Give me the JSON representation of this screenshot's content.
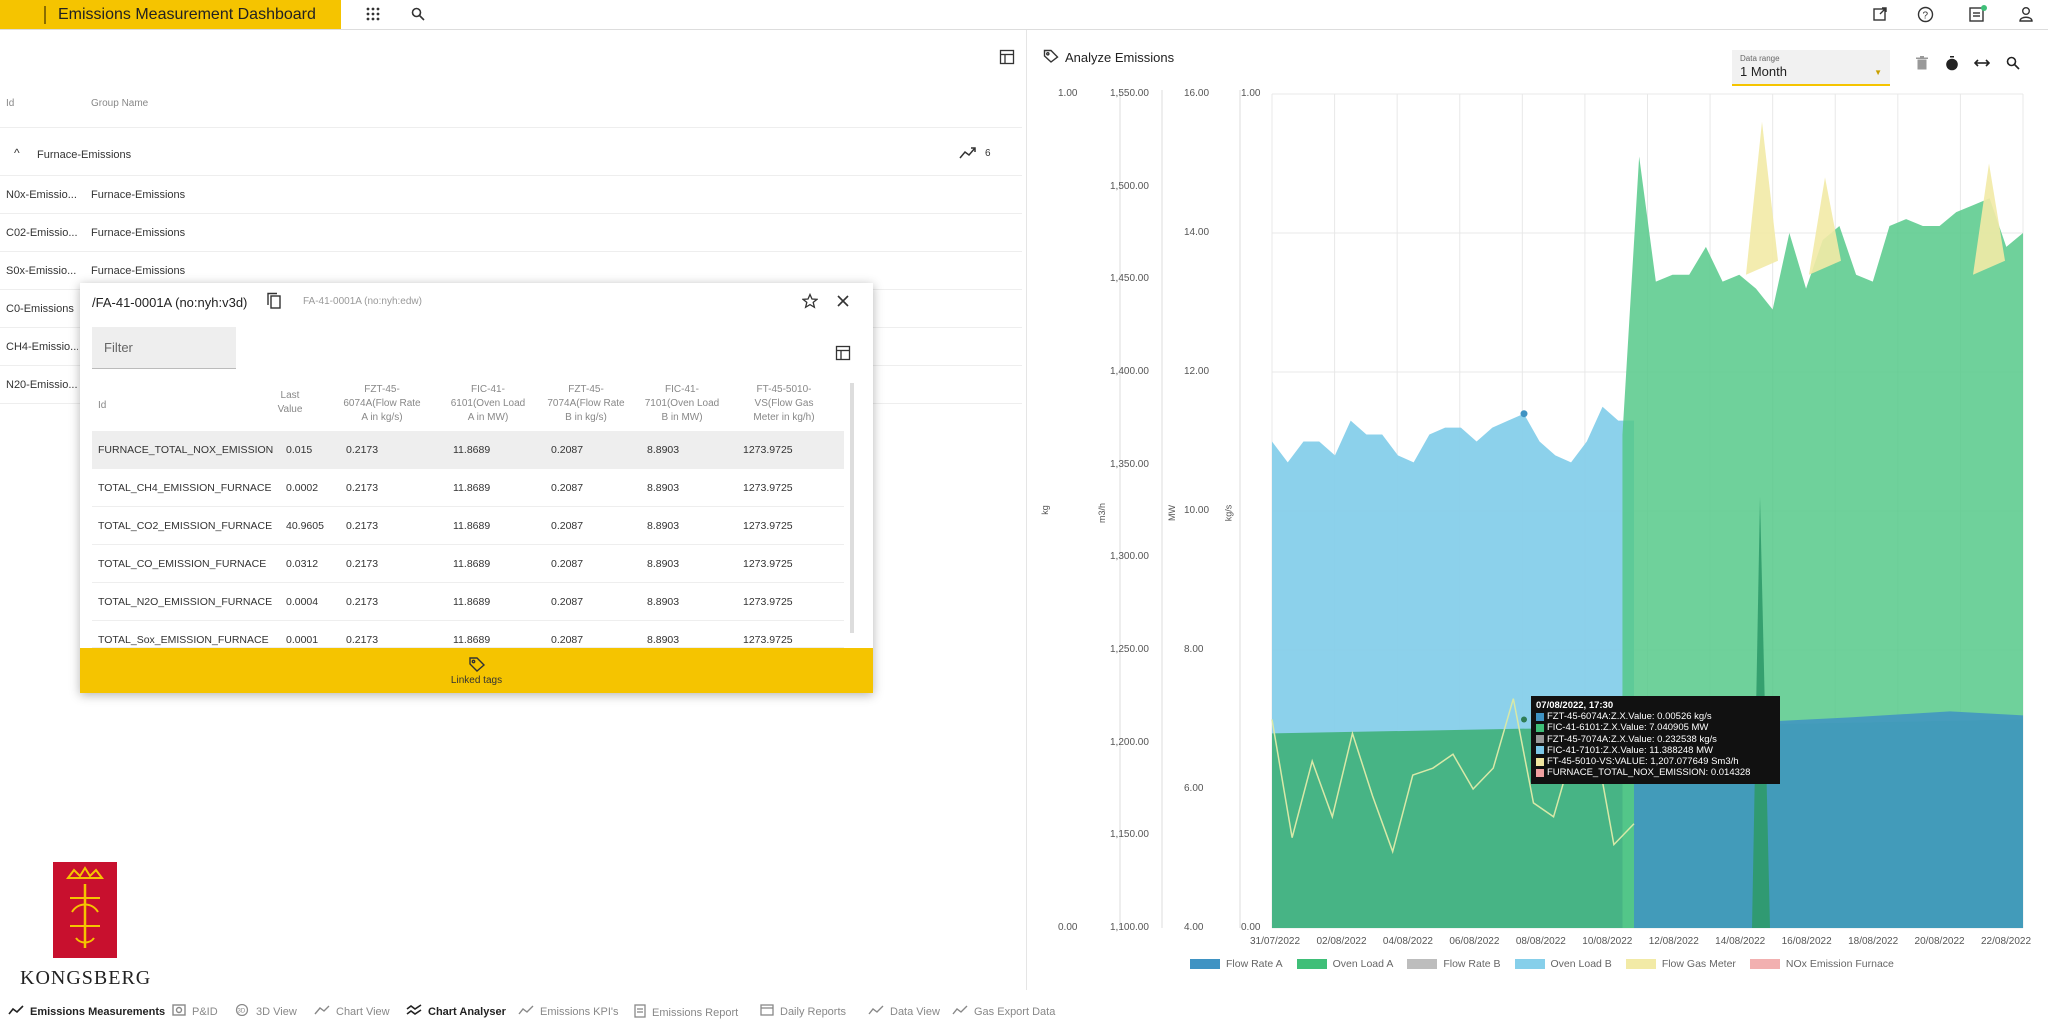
{
  "app": {
    "title": "Emissions Measurement Dashboard"
  },
  "top_icons": [
    "grid-icon",
    "search-icon",
    "external-link-icon",
    "help-icon",
    "notifications-icon",
    "user-icon"
  ],
  "left": {
    "columns": {
      "id": "Id",
      "group": "Group Name"
    },
    "group": {
      "name": "Furnace-Emissions",
      "count": "6"
    },
    "rows": [
      {
        "id": "N0x-Emissio...",
        "group": "Furnace-Emissions"
      },
      {
        "id": "C02-Emissio...",
        "group": "Furnace-Emissions"
      },
      {
        "id": "S0x-Emissio...",
        "group": "Furnace-Emissions"
      },
      {
        "id": "C0-Emissions",
        "group": ""
      },
      {
        "id": "CH4-Emissio...",
        "group": ""
      },
      {
        "id": "N20-Emissio...",
        "group": ""
      }
    ]
  },
  "popup": {
    "title": "/FA-41-0001A (no:nyh:v3d)",
    "subtitle": "FA-41-0001A (no:nyh:edw)",
    "filter_placeholder": "Filter",
    "headers": [
      "Id",
      "Last Value",
      "FZT-45-6074A(Flow Rate A in kg/s)",
      "FIC-41-6101(Oven Load A in MW)",
      "FZT-45-7074A(Flow Rate B in kg/s)",
      "FIC-41-7101(Oven Load B in MW)",
      "FT-45-5010-VS(Flow Gas Meter in kg/h)"
    ],
    "rows": [
      [
        "FURNACE_TOTAL_NOX_EMISSION",
        "0.015",
        "0.2173",
        "11.8689",
        "0.2087",
        "8.8903",
        "1273.9725"
      ],
      [
        "TOTAL_CH4_EMISSION_FURNACE",
        "0.0002",
        "0.2173",
        "11.8689",
        "0.2087",
        "8.8903",
        "1273.9725"
      ],
      [
        "TOTAL_CO2_EMISSION_FURNACE",
        "40.9605",
        "0.2173",
        "11.8689",
        "0.2087",
        "8.8903",
        "1273.9725"
      ],
      [
        "TOTAL_CO_EMISSION_FURNACE",
        "0.0312",
        "0.2173",
        "11.8689",
        "0.2087",
        "8.8903",
        "1273.9725"
      ],
      [
        "TOTAL_N2O_EMISSION_FURNACE",
        "0.0004",
        "0.2173",
        "11.8689",
        "0.2087",
        "8.8903",
        "1273.9725"
      ],
      [
        "TOTAL_Sox_EMISSION_FURNACE",
        "0.0001",
        "0.2173",
        "11.8689",
        "0.2087",
        "8.8903",
        "1273.9725"
      ]
    ],
    "linked_label": "Linked tags"
  },
  "chart": {
    "title": "Analyze Emissions",
    "date_range_label": "Data range",
    "date_range_value": "1 Month",
    "tooltip": {
      "title": "07/08/2022, 17:30",
      "lines": [
        {
          "text": "FZT-45-6074A:Z.X.Value: 0.00526 kg/s",
          "color": "#3f93c3"
        },
        {
          "text": "FIC-41-6101:Z.X.Value: 7.040905 MW",
          "color": "#3fbf78"
        },
        {
          "text": "FZT-45-7074A:Z.X.Value: 0.232538 kg/s",
          "color": "#9a9a9a"
        },
        {
          "text": "FIC-41-7101:Z.X.Value: 11.388248 MW",
          "color": "#7cc8e8"
        },
        {
          "text": "FT-45-5010-VS:VALUE: 1,207.077649 Sm3/h",
          "color": "#f0e6a0"
        },
        {
          "text": "FURNACE_TOTAL_NOX_EMISSION: 0.014328",
          "color": "#f0a0a0"
        }
      ]
    }
  },
  "chart_data": {
    "type": "area",
    "x_ticks": [
      "31/07/2022",
      "02/08/2022",
      "04/08/2022",
      "06/08/2022",
      "08/08/2022",
      "10/08/2022",
      "12/08/2022",
      "14/08/2022",
      "16/08/2022",
      "18/08/2022",
      "20/08/2022",
      "22/08/2022"
    ],
    "axes": [
      {
        "unit": "kg",
        "ticks": [
          "0.00",
          "1.00"
        ]
      },
      {
        "unit": "m3/h",
        "ticks": [
          "1,100.00",
          "1,150.00",
          "1,200.00",
          "1,250.00",
          "1,300.00",
          "1,350.00",
          "1,400.00",
          "1,450.00",
          "1,500.00",
          "1,550.00"
        ]
      },
      {
        "unit": "MW",
        "ticks": [
          "4.00",
          "6.00",
          "8.00",
          "10.00",
          "12.00",
          "14.00",
          "16.00"
        ]
      },
      {
        "unit": "kg/s",
        "ticks": [
          "0.00",
          "1.00"
        ]
      }
    ],
    "series": [
      {
        "name": "Flow Rate A",
        "color": "#3f93c3"
      },
      {
        "name": "Oven Load A",
        "color": "#3fbf78"
      },
      {
        "name": "Flow Rate B",
        "color": "#bdbdbd"
      },
      {
        "name": "Oven Load B",
        "color": "#86cfea"
      },
      {
        "name": "Flow Gas Meter",
        "color": "#f2eaa6"
      },
      {
        "name": "NOx Emission Furnace",
        "color": "#f2b0b0"
      }
    ],
    "oven_load_b": [
      11.0,
      10.7,
      11.0,
      11.0,
      10.8,
      11.3,
      11.1,
      11.1,
      10.8,
      10.7,
      11.1,
      11.2,
      11.2,
      11.0,
      11.2,
      11.3,
      11.4,
      11.0,
      10.8,
      10.7,
      11.0,
      11.5,
      11.3,
      11.3
    ],
    "oven_load_a": [
      null,
      null,
      null,
      null,
      null,
      null,
      null,
      null,
      null,
      null,
      null,
      null,
      null,
      null,
      null,
      null,
      null,
      null,
      null,
      null,
      null,
      11.1,
      15.1,
      13.3,
      13.4,
      13.4,
      13.8,
      13.3,
      13.4,
      13.2,
      12.9,
      14.0,
      13.2,
      13.9,
      14.1,
      13.4,
      13.3,
      14.1,
      14.2,
      14.1,
      14.1,
      14.3,
      14.4,
      14.5,
      13.8,
      14.0
    ],
    "flow_gas_peaks": [
      15.6,
      14.8,
      15.0
    ],
    "flow_rate_a_level": 6.8
  },
  "bottom_nav": [
    "Emissions Measurements",
    "P&ID",
    "3D View",
    "Chart View",
    "Chart Analyser",
    "Emissions KPI's",
    "Emissions Report",
    "Daily Reports",
    "Data View",
    "Gas Export Data"
  ],
  "logo": {
    "text": "KONGSBERG"
  }
}
